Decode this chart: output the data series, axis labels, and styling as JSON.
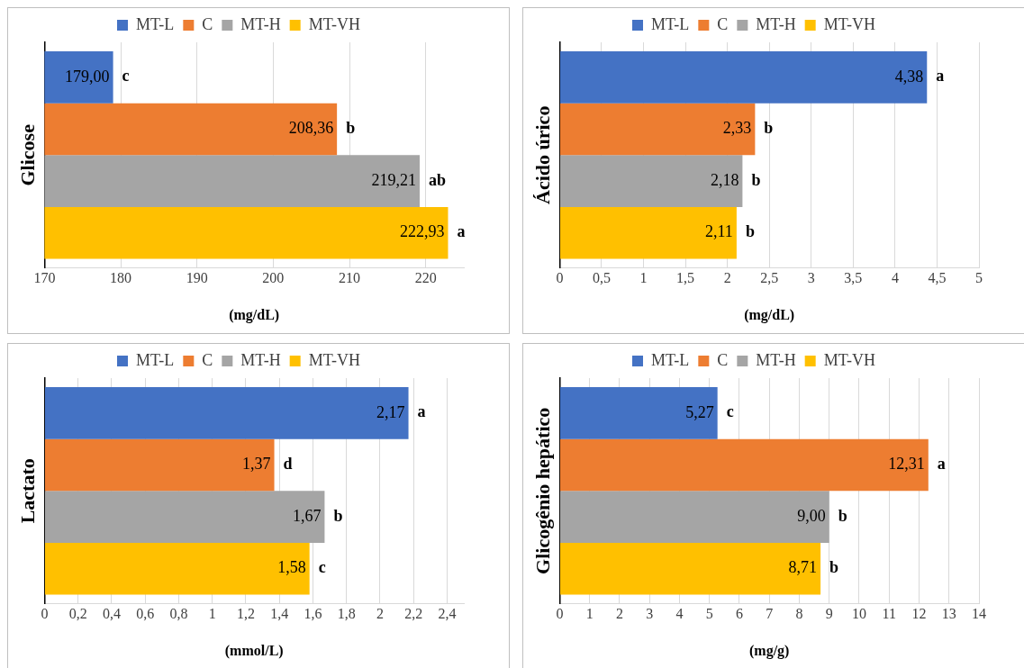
{
  "chart_data": [
    {
      "type": "bar",
      "orientation": "horizontal",
      "ylabel": "Glicose",
      "xlabel": "(mg/dL)",
      "categories": [
        null
      ],
      "legend": "top",
      "grid": "x",
      "xlim": [
        170,
        225
      ],
      "xticks": [
        170,
        180,
        190,
        200,
        210,
        220
      ],
      "series": [
        {
          "name": "MT-L",
          "color": "#4472c4",
          "values": [
            179.0
          ],
          "value_labels": [
            "179,00"
          ]
        },
        {
          "name": "C",
          "color": "#ed7d31",
          "values": [
            208.36
          ],
          "value_labels": [
            "208,36"
          ]
        },
        {
          "name": "MT-H",
          "color": "#a5a5a5",
          "values": [
            219.21
          ],
          "value_labels": [
            "219,21"
          ]
        },
        {
          "name": "MT-VH",
          "color": "#ffc000",
          "values": [
            222.93
          ],
          "value_labels": [
            "222,93"
          ]
        }
      ],
      "annotations": [
        {
          "text": "c",
          "x": 179.0
        },
        {
          "text": "b",
          "x": 208.36
        },
        {
          "text": "ab",
          "x": 219.21
        },
        {
          "text": "a",
          "x": 222.93
        }
      ]
    },
    {
      "type": "bar",
      "orientation": "horizontal",
      "ylabel": "Ácido úrico",
      "xlabel": "(mg/dL)",
      "categories": [
        null
      ],
      "legend": "top",
      "grid": "x",
      "xlim": [
        0,
        5
      ],
      "xticks": [
        0,
        {
          "value": 0.5,
          "label": "0,5"
        },
        1,
        {
          "value": 1.5,
          "label": "1,5"
        },
        2,
        {
          "value": 2.5,
          "label": "2,5"
        },
        3,
        {
          "value": 3.5,
          "label": "3,5"
        },
        4,
        {
          "value": 4.5,
          "label": "4,5"
        },
        5
      ],
      "series": [
        {
          "name": "MT-L",
          "color": "#4472c4",
          "values": [
            4.38
          ],
          "value_labels": [
            "4,38"
          ]
        },
        {
          "name": "C",
          "color": "#ed7d31",
          "values": [
            2.33
          ],
          "value_labels": [
            "2,33"
          ]
        },
        {
          "name": "MT-H",
          "color": "#a5a5a5",
          "values": [
            2.18
          ],
          "value_labels": [
            "2,18"
          ]
        },
        {
          "name": "MT-VH",
          "color": "#ffc000",
          "values": [
            2.11
          ],
          "value_labels": [
            "2,11"
          ]
        }
      ],
      "annotations": [
        {
          "text": "a",
          "x": 4.38
        },
        {
          "text": "b",
          "x": 2.33
        },
        {
          "text": "b",
          "x": 2.18
        },
        {
          "text": "b",
          "x": 2.11
        }
      ]
    },
    {
      "type": "bar",
      "orientation": "horizontal",
      "ylabel": "Lactato",
      "xlabel": "(mmol/L)",
      "categories": [
        null
      ],
      "legend": "top",
      "grid": "x",
      "xlim": [
        0,
        2.5
      ],
      "xticks": [
        0,
        {
          "value": 0.2,
          "label": "0,2"
        },
        {
          "value": 0.4,
          "label": "0,4"
        },
        {
          "value": 0.6,
          "label": "0,6"
        },
        {
          "value": 0.8,
          "label": "0,8"
        },
        1,
        {
          "value": 1.2,
          "label": "1,2"
        },
        {
          "value": 1.4,
          "label": "1,4"
        },
        {
          "value": 1.6,
          "label": "1,6"
        },
        {
          "value": 1.8,
          "label": "1,8"
        },
        2,
        {
          "value": 2.2,
          "label": "2,2"
        },
        {
          "value": 2.4,
          "label": "2,4"
        }
      ],
      "series": [
        {
          "name": "MT-L",
          "color": "#4472c4",
          "values": [
            2.17
          ],
          "value_labels": [
            "2,17"
          ]
        },
        {
          "name": "C",
          "color": "#ed7d31",
          "values": [
            1.37
          ],
          "value_labels": [
            "1,37"
          ]
        },
        {
          "name": "MT-H",
          "color": "#a5a5a5",
          "values": [
            1.67
          ],
          "value_labels": [
            "1,67"
          ]
        },
        {
          "name": "MT-VH",
          "color": "#ffc000",
          "values": [
            1.58
          ],
          "value_labels": [
            "1,58"
          ]
        }
      ],
      "annotations": [
        {
          "text": "a",
          "x": 2.17
        },
        {
          "text": "d",
          "x": 1.37
        },
        {
          "text": "b",
          "x": 1.67
        },
        {
          "text": "c",
          "x": 1.58
        }
      ]
    },
    {
      "type": "bar",
      "orientation": "horizontal",
      "ylabel": "Glicogênio hepático",
      "xlabel": "(mg/g)",
      "categories": [
        null
      ],
      "legend": "top",
      "grid": "x",
      "xlim": [
        0,
        14
      ],
      "xticks": [
        0,
        1,
        2,
        3,
        4,
        5,
        6,
        7,
        8,
        9,
        10,
        11,
        12,
        13,
        14
      ],
      "series": [
        {
          "name": "MT-L",
          "color": "#4472c4",
          "values": [
            5.27
          ],
          "value_labels": [
            "5,27"
          ]
        },
        {
          "name": "C",
          "color": "#ed7d31",
          "values": [
            12.31
          ],
          "value_labels": [
            "12,31"
          ]
        },
        {
          "name": "MT-H",
          "color": "#a5a5a5",
          "values": [
            9.0
          ],
          "value_labels": [
            "9,00"
          ]
        },
        {
          "name": "MT-VH",
          "color": "#ffc000",
          "values": [
            8.71
          ],
          "value_labels": [
            "8,71"
          ]
        }
      ],
      "annotations": [
        {
          "text": "c",
          "x": 5.27
        },
        {
          "text": "a",
          "x": 12.31
        },
        {
          "text": "b",
          "x": 9.0
        },
        {
          "text": "b",
          "x": 8.71
        }
      ]
    }
  ]
}
